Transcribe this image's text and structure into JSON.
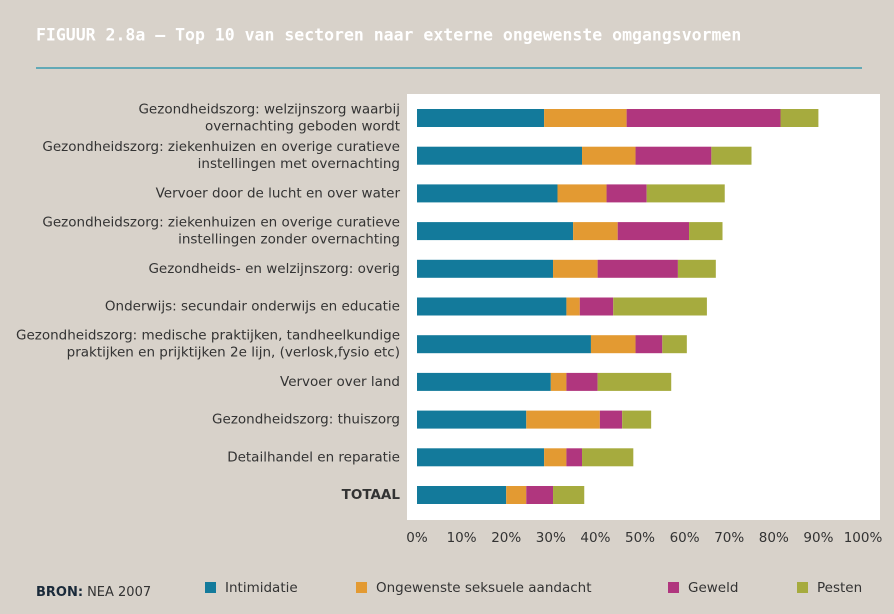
{
  "chart_data": {
    "type": "stacked_barh",
    "title": "FIGUUR 2.8a  –  Top 10 van sectoren naar externe ongewenste omgangsvormen",
    "categories": [
      [
        "Gezondheidszorg: welzijnszorg waarbij",
        "overnachting geboden wordt"
      ],
      [
        "Gezondheidszorg: ziekenhuizen en overige curatieve",
        "instellingen met overnachting"
      ],
      [
        "Vervoer door de lucht en over water"
      ],
      [
        "Gezondheidszorg: ziekenhuizen en overige curatieve",
        "instellingen zonder overnachting"
      ],
      [
        "Gezondheids- en welzijnszorg: overig"
      ],
      [
        "Onderwijs: secundair onderwijs en educatie"
      ],
      [
        "Gezondheidszorg: medische praktijken, tandheelkundige",
        "praktijken en prijktijken 2e lijn, (verlosk,fysio etc)"
      ],
      [
        "Vervoer over land"
      ],
      [
        "Gezondheidszorg: thuiszorg"
      ],
      [
        "Detailhandel en reparatie"
      ],
      [
        "TOTAAL"
      ]
    ],
    "series": [
      {
        "name": "Intimidatie",
        "color": "#137a9b",
        "values": [
          28.5,
          37,
          31.5,
          35,
          30.5,
          33.5,
          39,
          30,
          24.5,
          28.5,
          20
        ]
      },
      {
        "name": "Ongewenste seksuele aandacht",
        "color": "#e39a32",
        "values": [
          18.5,
          12,
          11,
          10,
          10,
          3,
          10,
          3.5,
          16.5,
          5,
          4.5
        ]
      },
      {
        "name": "Geweld",
        "color": "#b0367e",
        "values": [
          34.5,
          17,
          9,
          16,
          18,
          7.5,
          6,
          7,
          5,
          3.5,
          6
        ]
      },
      {
        "name": "Pesten",
        "color": "#a6ab3e",
        "values": [
          8.5,
          9,
          17.5,
          7.5,
          8.5,
          21,
          5.5,
          16.5,
          6.5,
          11.5,
          7
        ]
      }
    ],
    "xlim": [
      0,
      100
    ],
    "xticks": [
      {
        "value": 0,
        "label": "0%"
      },
      {
        "value": 10,
        "label": "10%"
      },
      {
        "value": 20,
        "label": "20%"
      },
      {
        "value": 30,
        "label": "30%"
      },
      {
        "value": 40,
        "label": "40%"
      },
      {
        "value": 50,
        "label": "50%"
      },
      {
        "value": 60,
        "label": "60%"
      },
      {
        "value": 70,
        "label": "70%"
      },
      {
        "value": 80,
        "label": "80%"
      },
      {
        "value": 90,
        "label": "90%"
      },
      {
        "value": 100,
        "label": "100%"
      }
    ],
    "source_label": "BRON:",
    "source": "NEA 2007"
  }
}
